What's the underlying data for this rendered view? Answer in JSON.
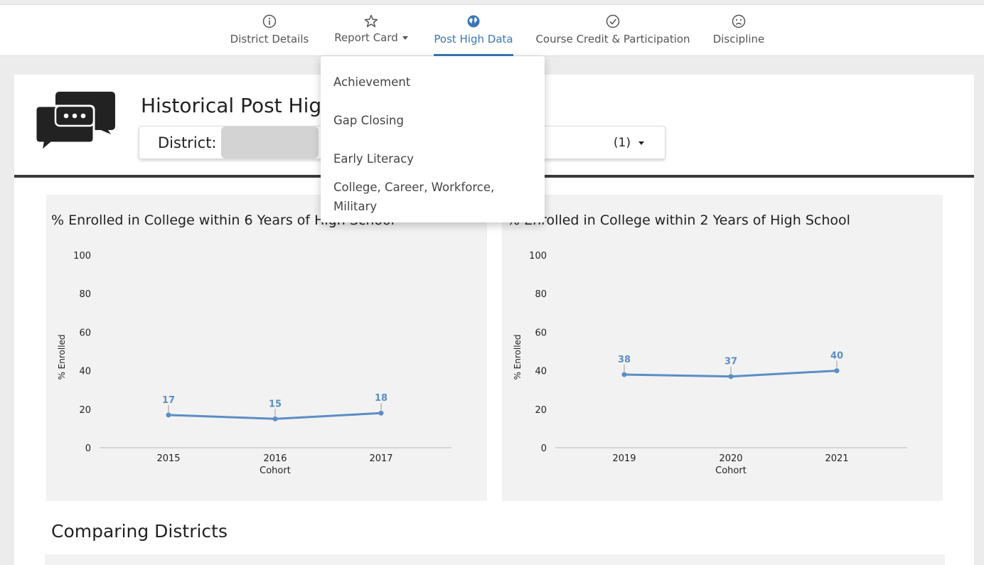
{
  "nav": {
    "items": [
      {
        "label": "District Details",
        "icon": "info-icon"
      },
      {
        "label": "Report Card",
        "icon": "star-icon"
      },
      {
        "label": "Post High Data",
        "icon": "globe-icon"
      },
      {
        "label": "Course Credit & Participation",
        "icon": "check-circle-icon"
      },
      {
        "label": "Discipline",
        "icon": "sad-face-icon"
      }
    ],
    "active": "Post High Data"
  },
  "header": {
    "title": "Historical Post High",
    "district_label": "District:",
    "district_count": "(1)"
  },
  "dropdown": {
    "items": [
      "Achievement",
      "Gap Closing",
      "Early Literacy",
      "College, Career, Workforce,",
      "Military"
    ]
  },
  "chart_data": [
    {
      "type": "line",
      "title": "% Enrolled in College within 6 Years of High School",
      "xlabel": "Cohort",
      "ylabel": "% Enrolled",
      "categories": [
        "2015",
        "2016",
        "2017"
      ],
      "values": [
        17,
        15,
        18
      ],
      "ylim": [
        0,
        100
      ],
      "yticks": [
        "100",
        "80",
        "60",
        "40",
        "20",
        "0"
      ],
      "color": "#5b8ec4"
    },
    {
      "type": "line",
      "title": "% Enrolled in College within 2 Years of High School",
      "xlabel": "Cohort",
      "ylabel": "% Enrolled",
      "categories": [
        "2019",
        "2020",
        "2021"
      ],
      "values": [
        38,
        37,
        40
      ],
      "ylim": [
        0,
        100
      ],
      "yticks": [
        "100",
        "80",
        "60",
        "40",
        "20",
        "0"
      ],
      "color": "#5b8ec4"
    }
  ],
  "section": {
    "comparing_title": "Comparing Districts"
  }
}
